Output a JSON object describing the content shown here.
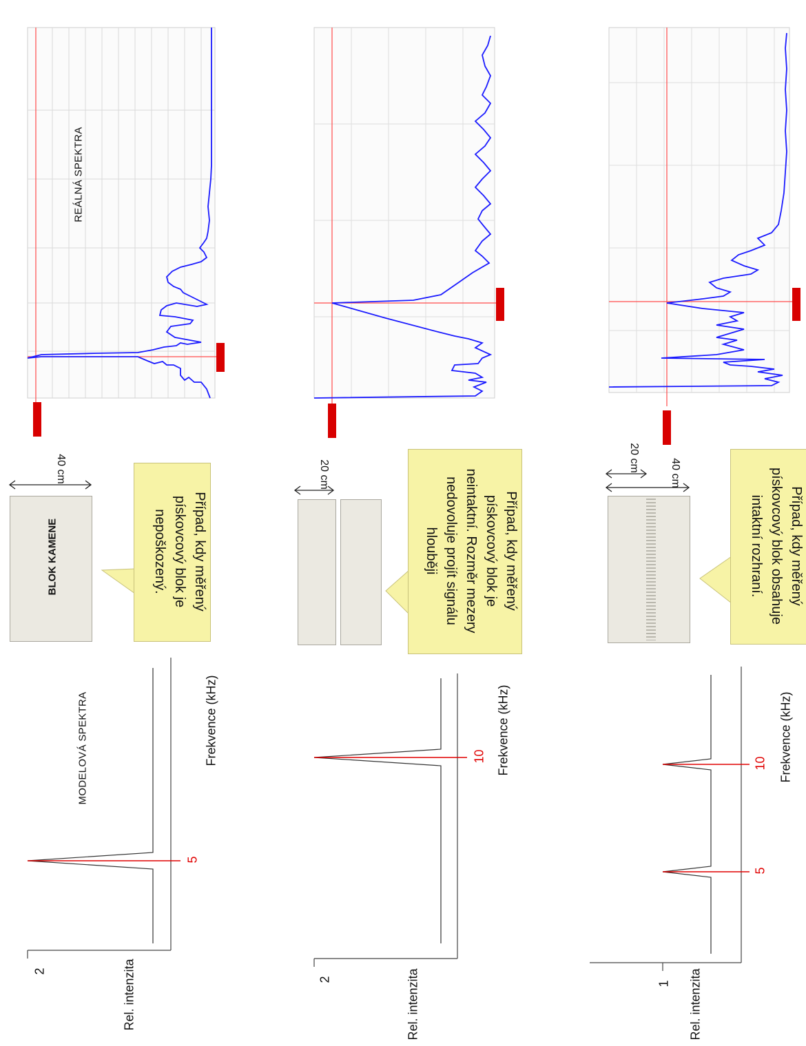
{
  "model_label": "MODELOVÁ SPEKTRA",
  "real_label": "REÁLNÁ SPEKTRA",
  "block_label": "BLOK KAMENE",
  "axis_y_label": "Rel. intenzita",
  "axis_x_label": "Frekvence (kHz)",
  "colors": {
    "peak": "#e00000",
    "spectrum": "#1a1aff",
    "callout": "#f7f3a6",
    "block": "#ebe9e1"
  },
  "rows": [
    {
      "ytick": "2",
      "peaks": [
        "5"
      ],
      "size_labels": [
        "40 cm"
      ],
      "callout": "Případ, kdy měřený\npískovcový blok je\nnepoškozený."
    },
    {
      "ytick": "2",
      "peaks": [
        "10"
      ],
      "size_labels": [
        "20 cm"
      ],
      "callout": "Případ, kdy měřený\npískovcový blok je\nneintaktní. Rozměr mezery\nnedovoluje projít signálu\nhlouběji"
    },
    {
      "ytick": "1",
      "peaks": [
        "5",
        "10"
      ],
      "size_labels": [
        "20 cm",
        "40 cm"
      ],
      "callout": "Případ, kdy měřený\npískovcový blok obsahuje\nintaktní rozhraní."
    }
  ],
  "chart_data": [
    {
      "type": "line",
      "xlabel": "Frekvence (kHz)",
      "ylabel": "Rel. intenzita",
      "peaks_kHz": [
        5
      ],
      "peak_rel_intensity": [
        2
      ]
    },
    {
      "type": "line",
      "xlabel": "Frekvence (kHz)",
      "ylabel": "Rel. intenzita",
      "peaks_kHz": [
        10
      ],
      "peak_rel_intensity": [
        2
      ]
    },
    {
      "type": "line",
      "xlabel": "Frekvence (kHz)",
      "ylabel": "Rel. intenzita",
      "peaks_kHz": [
        5,
        10
      ],
      "peak_rel_intensity": [
        1,
        1
      ]
    }
  ]
}
